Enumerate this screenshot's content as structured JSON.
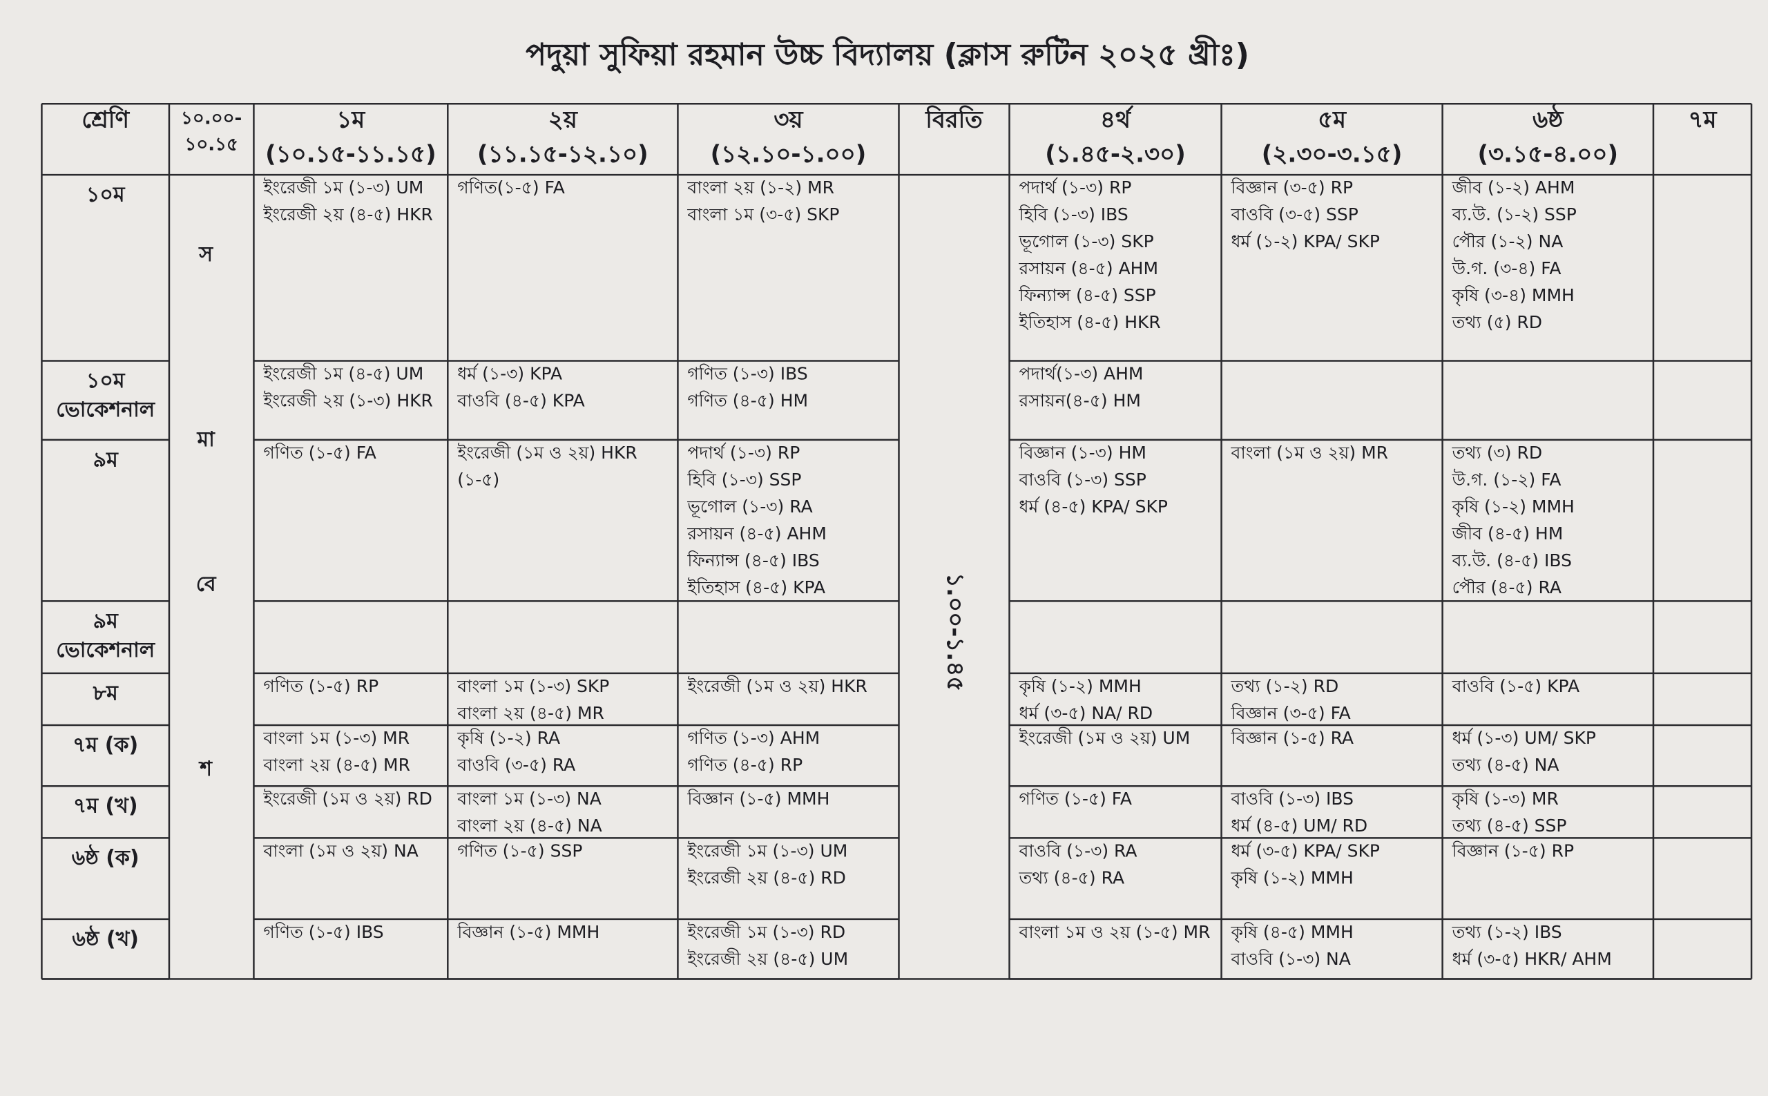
{
  "title": "পদুয়া সুফিয়া রহমান উচ্চ বিদ্যালয় (ক্লাস রুটিন ২০২৫ খ্রীঃ)",
  "header": {
    "class_label": "শ্রেণি",
    "assembly_time": [
      "১০.০০-",
      "১০.১৫"
    ],
    "periods": [
      {
        "name": "১ম",
        "time": "(১০.১৫-১১.১৫)"
      },
      {
        "name": "২য়",
        "time": "(১১.১৫-১২.১০)"
      },
      {
        "name": "৩য়",
        "time": "(১২.১০-১.০০)"
      },
      {
        "name": "৪র্থ",
        "time": "(১.৪৫-২.৩০)"
      },
      {
        "name": "৫ম",
        "time": "(২.৩০-৩.১৫)"
      },
      {
        "name": "৬ষ্ঠ",
        "time": "(৩.১৫-৪.০০)"
      },
      {
        "name": "৭ম"
      }
    ],
    "break_label": "বিরতি"
  },
  "assembly_letters": [
    "স",
    "মা",
    "বে",
    "শ"
  ],
  "break_time": "১.০০-১.৪৫",
  "rows": [
    {
      "class": [
        "১০ম"
      ],
      "cells": [
        [
          "ইংরেজী ১ম (১-৩) UM",
          "ইংরেজী ২য় (৪-৫) HKR"
        ],
        [
          "গণিত(১-৫) FA"
        ],
        [
          "বাংলা ২য় (১-২) MR",
          "বাংলা ১ম (৩-৫) SKP"
        ],
        [
          "পদার্থ (১-৩) RP",
          "হিবি (১-৩) IBS",
          "ভূগোল (১-৩) SKP",
          "রসায়ন (৪-৫) AHM",
          "ফিন্যান্স (৪-৫) SSP",
          "ইতিহাস (৪-৫) HKR"
        ],
        [
          "বিজ্ঞান (৩-৫) RP",
          "বাওবি (৩-৫) SSP",
          "ধর্ম (১-২) KPA/ SKP"
        ],
        [
          "জীব (১-২) AHM",
          "ব্য.উ. (১-২) SSP",
          "পৌর (১-২) NA",
          "উ.গ. (৩-৪) FA",
          "কৃষি (৩-৪) MMH",
          "তথ্য (৫) RD"
        ],
        []
      ]
    },
    {
      "class": [
        "১০ম",
        "ভোকেশনাল"
      ],
      "cells": [
        [
          "ইংরেজী ১ম (৪-৫) UM",
          "ইংরেজী ২য় (১-৩) HKR"
        ],
        [
          "ধর্ম (১-৩) KPA",
          "বাওবি (৪-৫) KPA"
        ],
        [
          "গণিত (১-৩) IBS",
          "গণিত (৪-৫) HM"
        ],
        [
          "পদার্থ(১-৩) AHM",
          "রসায়ন(৪-৫) HM"
        ],
        [],
        [],
        []
      ]
    },
    {
      "class": [
        "৯ম"
      ],
      "cells": [
        [
          "গণিত (১-৫) FA"
        ],
        [
          "ইংরেজী (১ম ও ২য়) HKR",
          "(১-৫)"
        ],
        [
          "পদার্থ (১-৩) RP",
          "হিবি (১-৩) SSP",
          "ভূগোল (১-৩) RA",
          "রসায়ন (৪-৫) AHM",
          "ফিন্যান্স (৪-৫) IBS",
          "ইতিহাস (৪-৫) KPA"
        ],
        [
          "বিজ্ঞান (১-৩) HM",
          "বাওবি (১-৩) SSP",
          "ধর্ম (৪-৫) KPA/ SKP"
        ],
        [
          "বাংলা (১ম ও ২য়) MR"
        ],
        [
          "তথ্য (৩) RD",
          "উ.গ. (১-২) FA",
          "কৃষি (১-২) MMH",
          "জীব (৪-৫) HM",
          "ব্য.উ. (৪-৫) IBS",
          "পৌর (৪-৫) RA"
        ],
        []
      ]
    },
    {
      "class": [
        "৯ম",
        "ভোকেশনাল"
      ],
      "cells": [
        [],
        [],
        [],
        [],
        [],
        [],
        []
      ]
    },
    {
      "class": [
        "৮ম"
      ],
      "cells": [
        [
          "গণিত (১-৫) RP"
        ],
        [
          "বাংলা ১ম (১-৩) SKP",
          "বাংলা ২য় (৪-৫) MR"
        ],
        [
          "ইংরেজী (১ম ও ২য়) HKR"
        ],
        [
          "কৃষি (১-২) MMH",
          "ধর্ম (৩-৫) NA/ RD"
        ],
        [
          "তথ্য (১-২) RD",
          "বিজ্ঞান (৩-৫) FA"
        ],
        [
          "বাওবি (১-৫) KPA"
        ],
        []
      ]
    },
    {
      "class": [
        "৭ম (ক)"
      ],
      "cells": [
        [
          "বাংলা ১ম (১-৩) MR",
          "বাংলা ২য় (৪-৫) MR"
        ],
        [
          "কৃষি (১-২) RA",
          "বাওবি (৩-৫) RA"
        ],
        [
          "গণিত (১-৩) AHM",
          "গণিত (৪-৫) RP"
        ],
        [
          "ইংরেজী (১ম ও ২য়) UM"
        ],
        [
          "বিজ্ঞান (১-৫) RA"
        ],
        [
          "ধর্ম (১-৩) UM/ SKP",
          "তথ্য (৪-৫) NA"
        ],
        []
      ]
    },
    {
      "class": [
        "৭ম (খ)"
      ],
      "cells": [
        [
          "ইংরেজী (১ম ও ২য়) RD"
        ],
        [
          "বাংলা ১ম (১-৩) NA",
          "বাংলা ২য় (৪-৫) NA"
        ],
        [
          "বিজ্ঞান (১-৫) MMH"
        ],
        [
          "গণিত (১-৫) FA"
        ],
        [
          "বাওবি (১-৩) IBS",
          "ধর্ম (৪-৫) UM/ RD"
        ],
        [
          "কৃষি (১-৩) MR",
          "তথ্য (৪-৫) SSP"
        ],
        []
      ]
    },
    {
      "class": [
        "৬ষ্ঠ (ক)"
      ],
      "cells": [
        [
          "বাংলা (১ম ও ২য়) NA"
        ],
        [
          "গণিত (১-৫) SSP"
        ],
        [
          "ইংরেজী ১ম (১-৩) UM",
          "ইংরেজী ২য় (৪-৫) RD"
        ],
        [
          "বাওবি (১-৩) RA",
          "তথ্য (৪-৫) RA"
        ],
        [
          "ধর্ম (৩-৫) KPA/ SKP",
          "কৃষি (১-২) MMH"
        ],
        [
          "বিজ্ঞান (১-৫) RP"
        ],
        []
      ]
    },
    {
      "class": [
        "৬ষ্ঠ (খ)"
      ],
      "cells": [
        [
          "গণিত (১-৫) IBS"
        ],
        [
          "বিজ্ঞান (১-৫) MMH"
        ],
        [
          "ইংরেজী ১ম (১-৩) RD",
          "ইংরেজী ২য় (৪-৫) UM"
        ],
        [
          "বাংলা ১ম ও ২য় (১-৫) MR"
        ],
        [
          "কৃষি (৪-৫) MMH",
          "বাওবি (১-৩) NA"
        ],
        [
          "তথ্য (১-২) IBS",
          "ধর্ম (৩-৫) HKR/ AHM"
        ],
        []
      ]
    }
  ]
}
